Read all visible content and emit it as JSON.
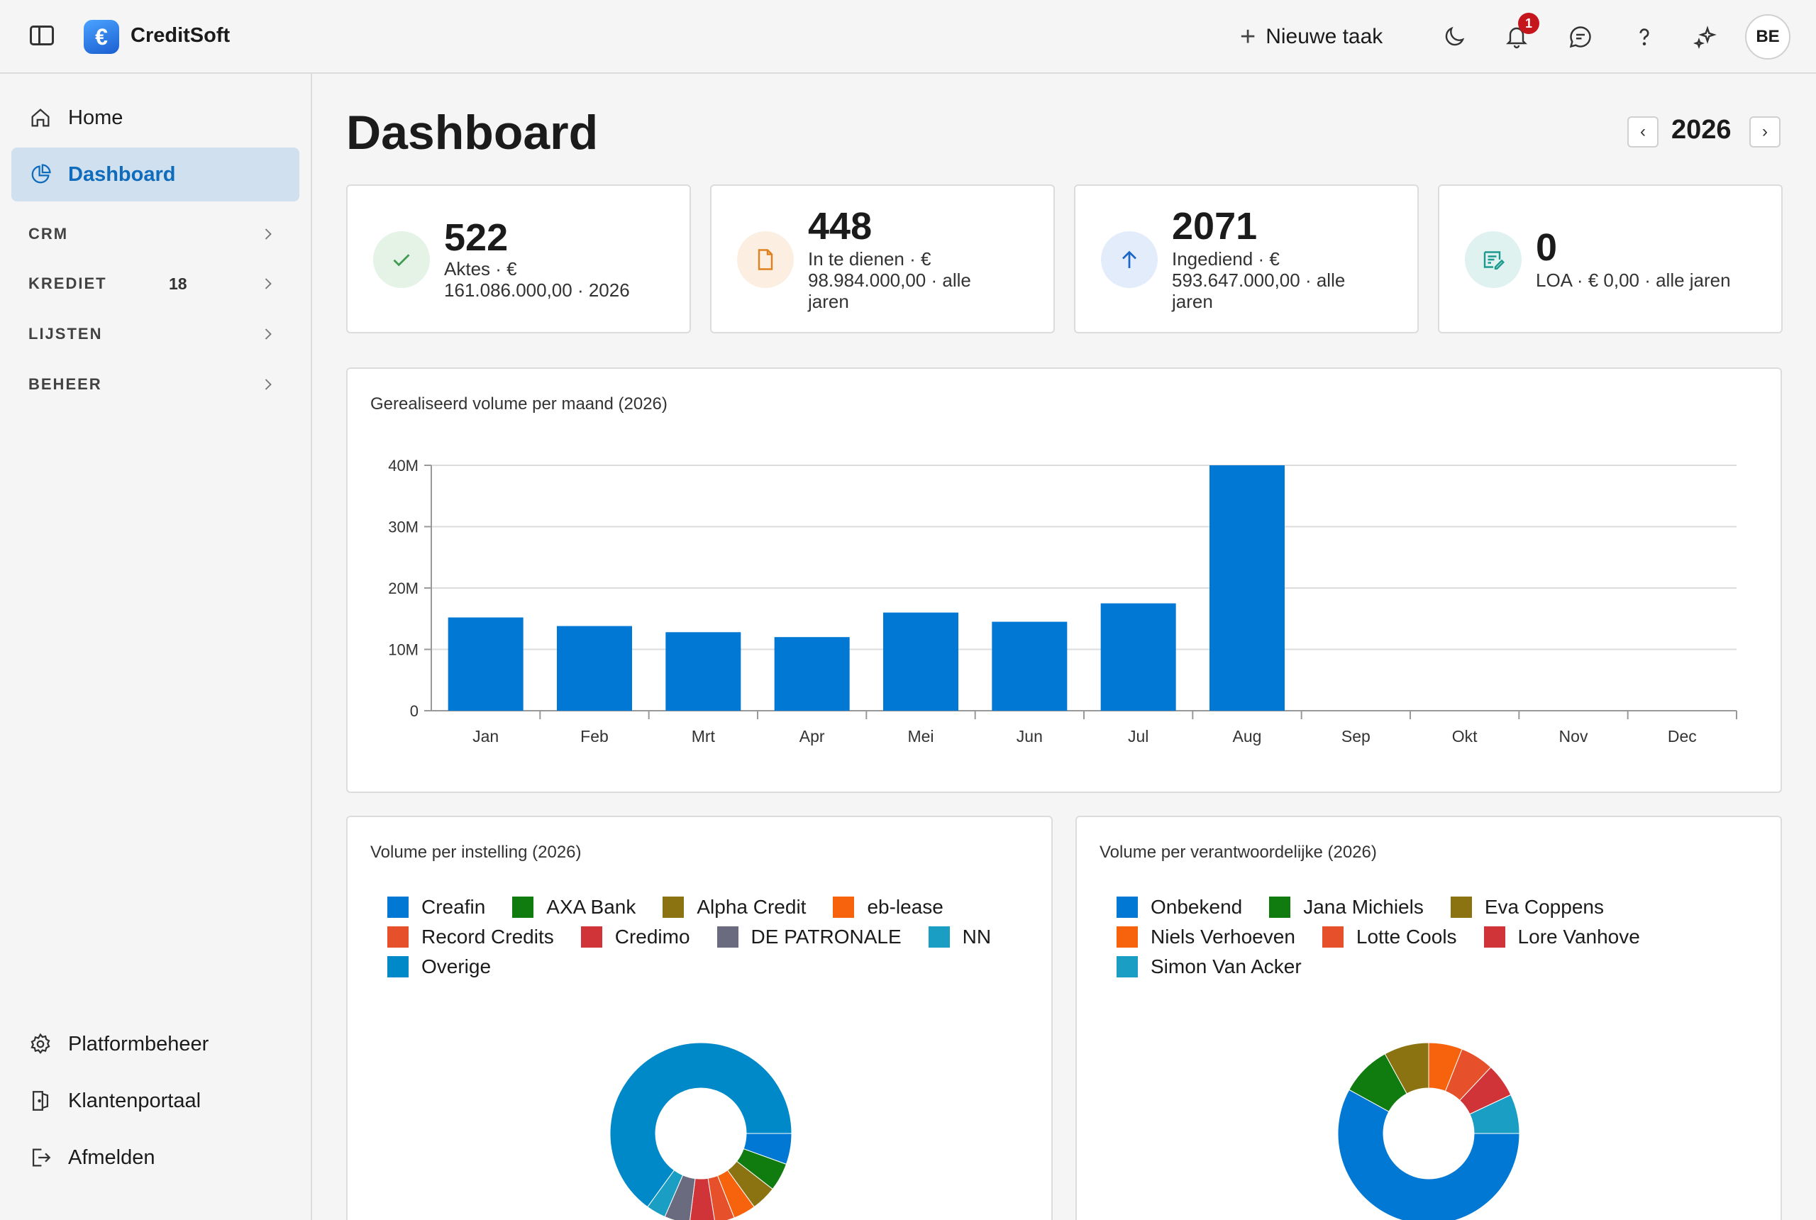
{
  "app": {
    "name": "CreditSoft",
    "logo_glyph": "€"
  },
  "topbar": {
    "new_task_label": "Nieuwe taak",
    "notification_count": "1",
    "user_initials": "BE"
  },
  "sidebar": {
    "home": "Home",
    "dashboard": "Dashboard",
    "sections": [
      {
        "label": "CRM",
        "count": ""
      },
      {
        "label": "KREDIET",
        "count": "18"
      },
      {
        "label": "LIJSTEN",
        "count": ""
      },
      {
        "label": "BEHEER",
        "count": ""
      }
    ],
    "footer": [
      "Platformbeheer",
      "Klantenportaal",
      "Afmelden"
    ]
  },
  "main": {
    "title": "Dashboard",
    "year": "2026",
    "kpis": [
      {
        "value": "522",
        "lines": [
          "Aktes · €",
          "161.086.000,00 · 2026"
        ],
        "color": "#3e9b4f",
        "bg": "#e4f3e6",
        "icon": "check-icon"
      },
      {
        "value": "448",
        "lines": [
          "In te dienen · €",
          "98.984.000,00 · alle",
          "jaren"
        ],
        "color": "#e0801f",
        "bg": "#fcefe1",
        "icon": "document-icon"
      },
      {
        "value": "2071",
        "lines": [
          "Ingediend · €",
          "593.647.000,00 · alle",
          "jaren"
        ],
        "color": "#1b66c9",
        "bg": "#e3ecfb",
        "icon": "arrow-up-icon"
      },
      {
        "value": "0",
        "lines": [
          "LOA · € 0,00 · alle jaren"
        ],
        "color": "#1c9a8e",
        "bg": "#dff2f0",
        "icon": "note-edit-icon"
      }
    ]
  },
  "chart_data": [
    {
      "type": "bar",
      "title": "Gerealiseerd volume per maand (2026)",
      "categories": [
        "Jan",
        "Feb",
        "Mrt",
        "Apr",
        "Mei",
        "Jun",
        "Jul",
        "Aug",
        "Sep",
        "Okt",
        "Nov",
        "Dec"
      ],
      "values": [
        15.2,
        13.8,
        12.8,
        12.0,
        16.0,
        14.5,
        17.5,
        40.0,
        0,
        0,
        0,
        0
      ],
      "unit": "M",
      "yticks": [
        "0",
        "10M",
        "20M",
        "30M",
        "40M"
      ],
      "ylim": [
        0,
        40
      ],
      "color": "#0078d4",
      "grid": true
    },
    {
      "type": "pie",
      "title": "Volume per instelling (2026)",
      "labels": [
        "Creafin",
        "AXA Bank",
        "Alpha Credit",
        "eb-lease",
        "Record Credits",
        "Credimo",
        "DE PATRONALE",
        "NN",
        "Overige"
      ],
      "colors": [
        "#0078d4",
        "#107c10",
        "#8b7312",
        "#f7630c",
        "#e6512b",
        "#d13438",
        "#6b6b80",
        "#1b9ec4",
        "#0089c9"
      ],
      "values": [
        5.5,
        5,
        4.5,
        4,
        3.5,
        4.5,
        4.5,
        3.5,
        65
      ]
    },
    {
      "type": "pie",
      "title": "Volume per verantwoordelijke (2026)",
      "labels": [
        "Onbekend",
        "Jana Michiels",
        "Eva Coppens",
        "Niels Verhoeven",
        "Lotte Cools",
        "Lore Vanhove",
        "Simon Van Acker"
      ],
      "colors": [
        "#0078d4",
        "#107c10",
        "#8b7312",
        "#f7630c",
        "#e6512b",
        "#d13438",
        "#1b9ec4"
      ],
      "values": [
        58,
        9,
        8,
        6,
        6,
        6,
        7
      ]
    }
  ]
}
